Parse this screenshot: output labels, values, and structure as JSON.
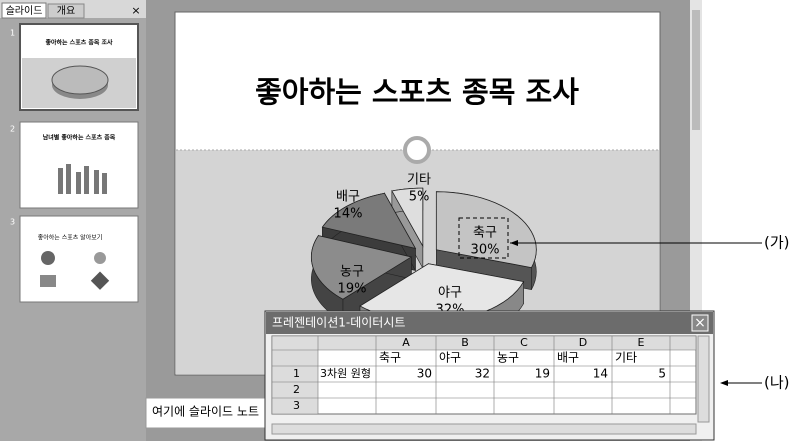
{
  "panel": {
    "tabs": [
      "슬라이드",
      "개요"
    ],
    "close": "×",
    "slides": [
      {
        "number": "1",
        "title": "좋아하는 스포츠 종목 조사"
      },
      {
        "number": "2",
        "title": "남녀별 좋아하는 스포츠 종목"
      },
      {
        "number": "3",
        "title": "좋아하는 스포츠 알아보기"
      }
    ]
  },
  "slide": {
    "title": "좋아하는 스포츠 종목 조사",
    "pie_labels": [
      {
        "name": "축구",
        "percent": "30%"
      },
      {
        "name": "야구",
        "percent": "32%"
      },
      {
        "name": "농구",
        "percent": "19%"
      },
      {
        "name": "배구",
        "percent": "14%"
      },
      {
        "name": "기타",
        "percent": "5%"
      }
    ]
  },
  "notes": "여기에 슬라이드 노트",
  "datasheet": {
    "title": "프레젠테이션1-데이터시트",
    "close": "×",
    "columns": [
      "A",
      "B",
      "C",
      "D",
      "E"
    ],
    "header": [
      "축구",
      "야구",
      "농구",
      "배구",
      "기타"
    ],
    "rows": [
      {
        "number": "1",
        "label": "3차원 원형",
        "values": [
          30,
          32,
          19,
          14,
          5
        ]
      },
      {
        "number": "2"
      },
      {
        "number": "3"
      }
    ]
  },
  "annotations": [
    "(가)",
    "(나)"
  ]
}
